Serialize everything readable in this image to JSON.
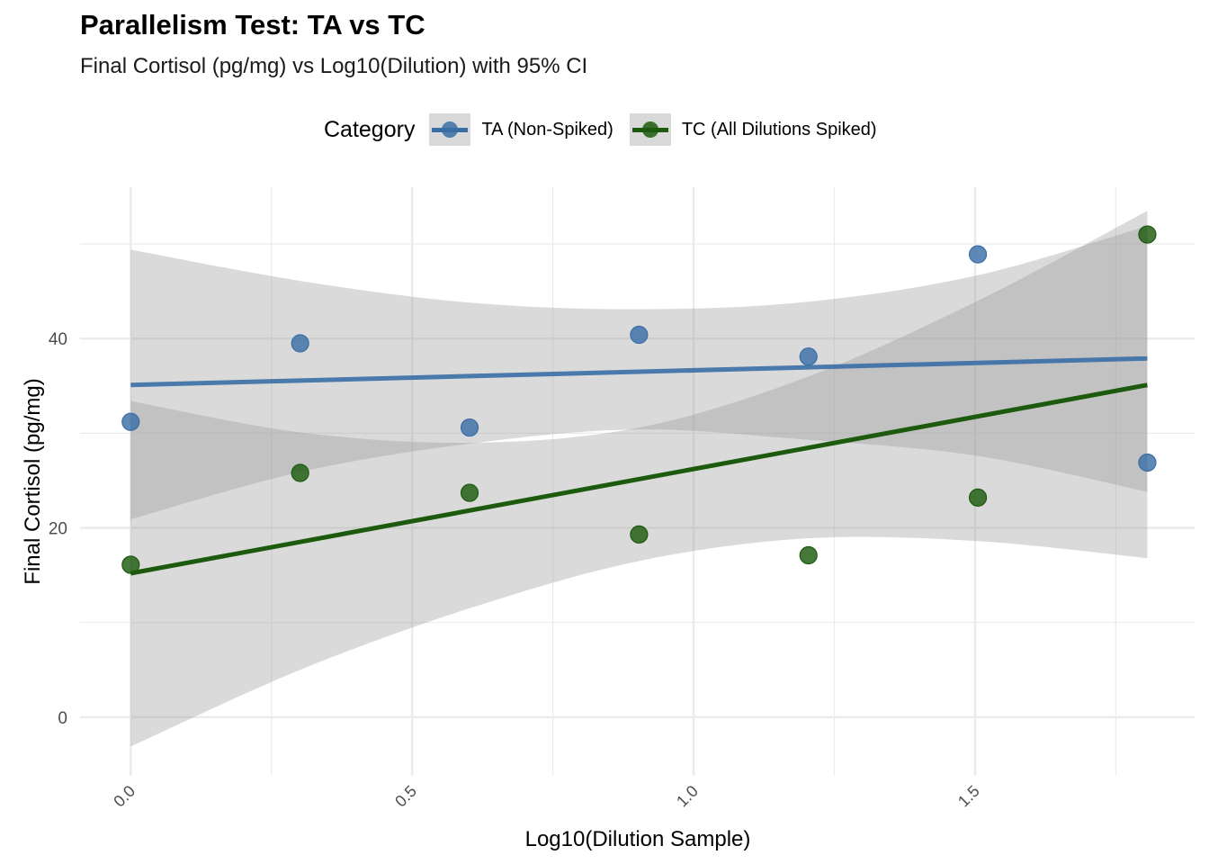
{
  "chart_data": {
    "type": "scatter",
    "title": "Parallelism Test: TA vs TC",
    "subtitle": "Final Cortisol (pg/mg) vs Log10(Dilution) with 95% CI",
    "xlabel": "Log10(Dilution Sample)",
    "ylabel": "Final Cortisol (pg/mg)",
    "xlim": [
      -0.09,
      1.89
    ],
    "ylim": [
      -6.2,
      56.0
    ],
    "x_ticks": [
      0.0,
      0.5,
      1.0,
      1.5
    ],
    "x_tick_labels": [
      "0.0",
      "0.5",
      "1.0",
      "1.5"
    ],
    "y_ticks": [
      0,
      20,
      40
    ],
    "y_tick_labels": [
      "0",
      "20",
      "40"
    ],
    "grid": true,
    "legend": {
      "title": "Category",
      "position": "top"
    },
    "series": [
      {
        "name": "TA (Non-Spiked)",
        "color": "#3a6ea5",
        "points": [
          {
            "x": 0.0,
            "y": 31.2
          },
          {
            "x": 0.301,
            "y": 39.5
          },
          {
            "x": 0.602,
            "y": 30.6
          },
          {
            "x": 0.903,
            "y": 40.4
          },
          {
            "x": 1.204,
            "y": 38.1
          },
          {
            "x": 1.505,
            "y": 48.9
          },
          {
            "x": 1.806,
            "y": 26.9
          }
        ],
        "fit": {
          "x": [
            0.0,
            1.806
          ],
          "y": [
            35.1,
            37.9
          ]
        },
        "ci_upper": [
          {
            "x": 0.0,
            "y": 49.4
          },
          {
            "x": 0.301,
            "y": 46.1
          },
          {
            "x": 0.602,
            "y": 43.8
          },
          {
            "x": 0.903,
            "y": 43.1
          },
          {
            "x": 1.204,
            "y": 43.9
          },
          {
            "x": 1.505,
            "y": 46.7
          },
          {
            "x": 1.806,
            "y": 51.9
          }
        ],
        "ci_lower": [
          {
            "x": 0.0,
            "y": 20.9
          },
          {
            "x": 0.301,
            "y": 25.9
          },
          {
            "x": 0.602,
            "y": 28.9
          },
          {
            "x": 0.903,
            "y": 30.4
          },
          {
            "x": 1.204,
            "y": 29.3
          },
          {
            "x": 1.505,
            "y": 27.6
          },
          {
            "x": 1.806,
            "y": 23.8
          }
        ]
      },
      {
        "name": "TC (All Dilutions Spiked)",
        "color": "#1c5a0e",
        "points": [
          {
            "x": 0.0,
            "y": 16.1
          },
          {
            "x": 0.301,
            "y": 25.8
          },
          {
            "x": 0.602,
            "y": 23.7
          },
          {
            "x": 0.903,
            "y": 19.3
          },
          {
            "x": 1.204,
            "y": 17.1
          },
          {
            "x": 1.505,
            "y": 23.2
          },
          {
            "x": 1.806,
            "y": 51.0
          }
        ],
        "fit": {
          "x": [
            0.0,
            1.806
          ],
          "y": [
            15.2,
            35.1
          ]
        },
        "ci_upper": [
          {
            "x": 0.0,
            "y": 33.4
          },
          {
            "x": 0.301,
            "y": 30.1
          },
          {
            "x": 0.602,
            "y": 29.0
          },
          {
            "x": 0.903,
            "y": 30.6
          },
          {
            "x": 1.204,
            "y": 36.0
          },
          {
            "x": 1.505,
            "y": 44.0
          },
          {
            "x": 1.806,
            "y": 53.5
          }
        ],
        "ci_lower": [
          {
            "x": 0.0,
            "y": -3.1
          },
          {
            "x": 0.301,
            "y": 5.0
          },
          {
            "x": 0.602,
            "y": 11.5
          },
          {
            "x": 0.903,
            "y": 16.5
          },
          {
            "x": 1.204,
            "y": 18.9
          },
          {
            "x": 1.505,
            "y": 18.6
          },
          {
            "x": 1.806,
            "y": 16.8
          }
        ]
      }
    ]
  }
}
